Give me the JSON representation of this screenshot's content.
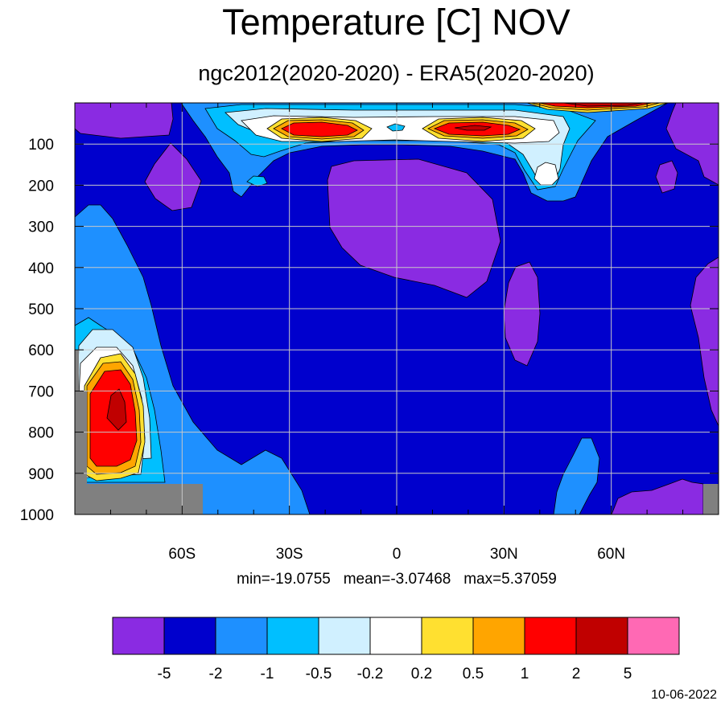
{
  "title": "Temperature [C] NOV",
  "subtitle": "ngc2012(2020-2020) - ERA5(2020-2020)",
  "stats": {
    "min": "min=-19.0755",
    "mean": "mean=-3.07468",
    "max": "max=5.37059"
  },
  "date": "10-06-2022",
  "colors": {
    "missing": "#808080"
  },
  "chart_data": {
    "type": "heatmap",
    "title": "Temperature [C] NOV",
    "subtitle": "ngc2012(2020-2020) - ERA5(2020-2020)",
    "x_axis": {
      "range": [
        -90,
        90
      ],
      "ticks": [
        -60,
        -30,
        0,
        30,
        60
      ],
      "tick_labels": [
        "60S",
        "30S",
        "0",
        "30N",
        "60N"
      ],
      "minor_ticks": [
        -80,
        -70,
        -50,
        -40,
        -20,
        -10,
        10,
        20,
        40,
        50,
        70,
        80
      ]
    },
    "y_axis": {
      "range": [
        1000,
        0
      ],
      "ticks": [
        100,
        200,
        300,
        400,
        500,
        600,
        700,
        800,
        900,
        1000
      ],
      "tick_labels": [
        "100",
        "200",
        "300",
        "400",
        "500",
        "600",
        "700",
        "800",
        "900",
        "1000"
      ]
    },
    "grid": true,
    "contour_levels": [
      -5,
      -2,
      -1,
      -0.5,
      -0.2,
      0.2,
      0.5,
      1,
      2,
      5
    ],
    "level_labels": [
      "-5",
      "-2",
      "-1",
      "-0.5",
      "-0.2",
      "0.2",
      "0.5",
      "1",
      "2",
      "5"
    ],
    "fill_colors": [
      "#8a2be2",
      "#0000cd",
      "#1e90ff",
      "#00bfff",
      "#d0f0ff",
      "#ffffff",
      "#ffe030",
      "#ffa500",
      "#ff0000",
      "#c00000",
      "#ff69b4"
    ],
    "legend_placement": "bottom",
    "z_min": -19.0755,
    "z_mean": -3.07468,
    "z_max": 5.37059
  }
}
